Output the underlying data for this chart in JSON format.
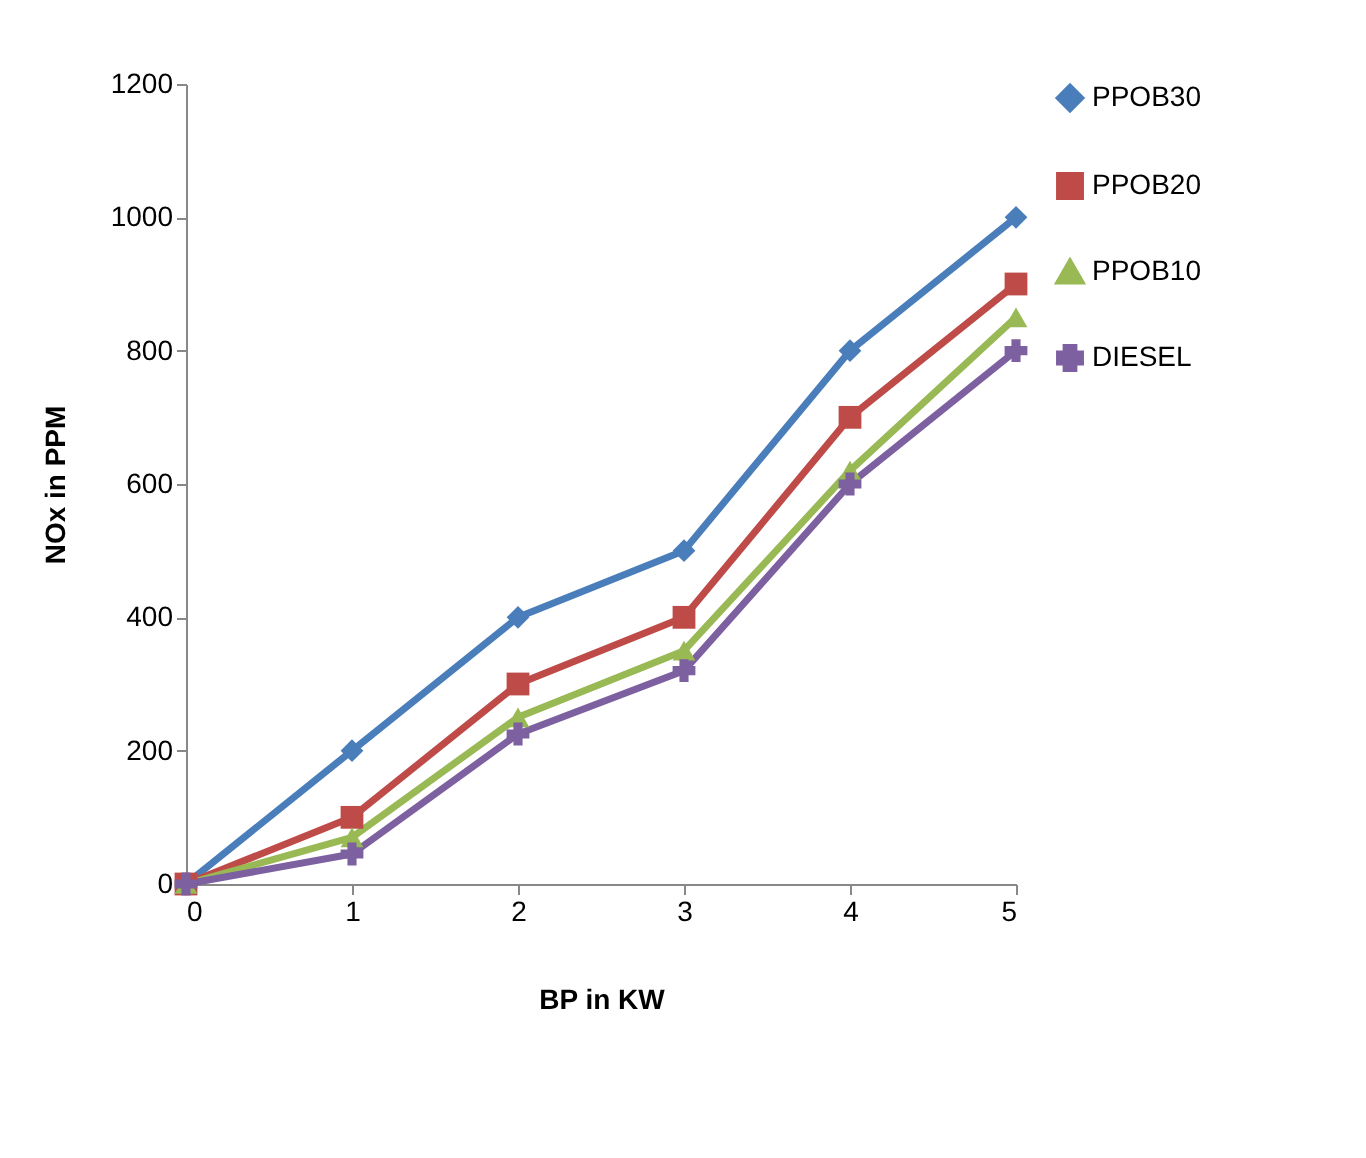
{
  "chart_data": {
    "type": "line",
    "xlabel": "BP in KW",
    "ylabel": "NOx in PPM",
    "x": [
      0,
      1,
      2,
      3,
      4,
      5
    ],
    "series": [
      {
        "name": "PPOB30",
        "color": "#4a7ebb",
        "marker": "diamond",
        "values": [
          0,
          200,
          400,
          500,
          800,
          1000
        ]
      },
      {
        "name": "PPOB20",
        "color": "#be4b48",
        "marker": "square",
        "values": [
          0,
          100,
          300,
          400,
          700,
          900
        ]
      },
      {
        "name": "PPOB10",
        "color": "#98b954",
        "marker": "triangle",
        "values": [
          0,
          70,
          250,
          350,
          620,
          850
        ]
      },
      {
        "name": "DIESEL",
        "color": "#7d60a0",
        "marker": "cross",
        "values": [
          0,
          45,
          225,
          320,
          600,
          800
        ]
      }
    ],
    "xlim": [
      0,
      5
    ],
    "xticks": [
      0,
      1,
      2,
      3,
      4,
      5
    ],
    "ylim": [
      0,
      1200
    ],
    "yticks": [
      0,
      200,
      400,
      600,
      800,
      1000,
      1200
    ],
    "grid": false,
    "legend": "right"
  }
}
